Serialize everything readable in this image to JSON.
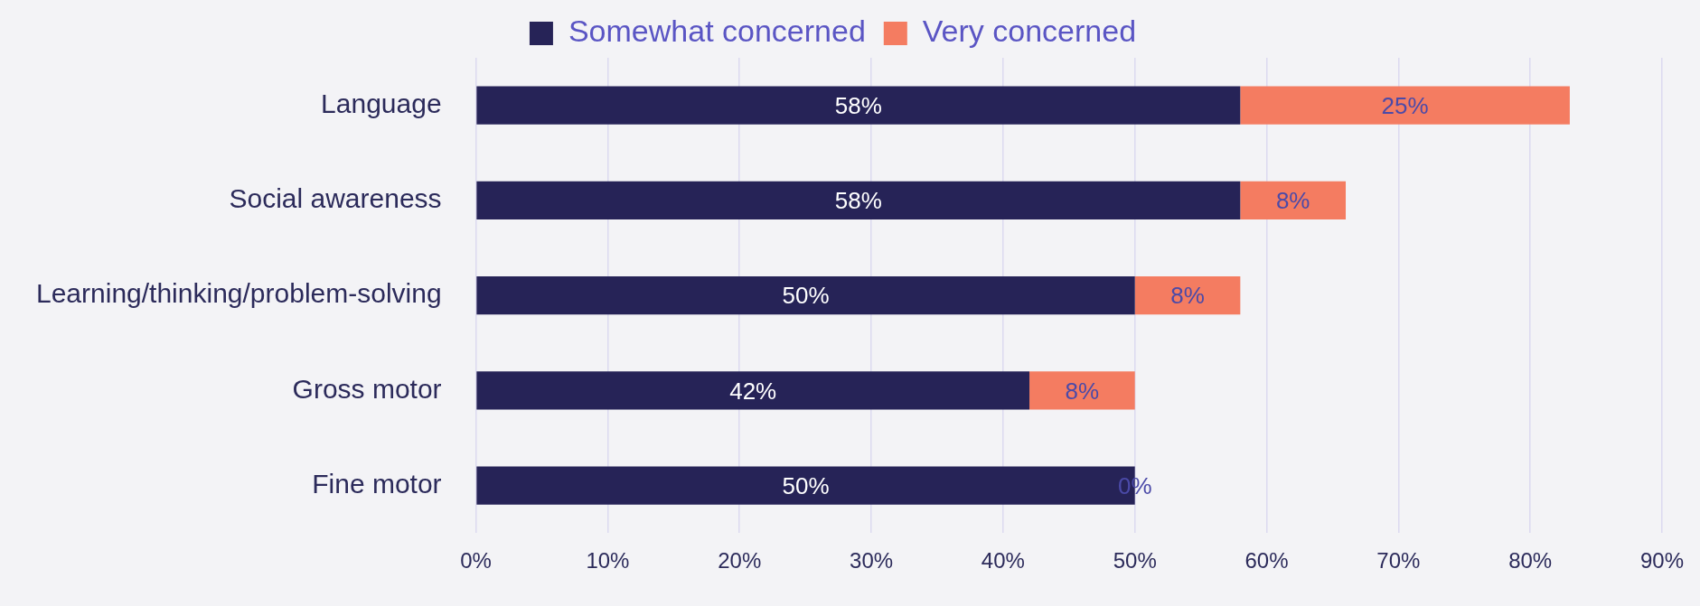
{
  "chart_data": {
    "type": "bar",
    "orientation": "horizontal",
    "stacked": true,
    "categories": [
      "Language",
      "Social awareness",
      "Learning/thinking/problem-solving",
      "Gross motor",
      "Fine motor"
    ],
    "series": [
      {
        "name": "Somewhat concerned",
        "color": "#262357",
        "values": [
          58,
          58,
          50,
          42,
          50
        ],
        "value_labels": [
          "58%",
          "58%",
          "50%",
          "42%",
          "50%"
        ]
      },
      {
        "name": "Very concerned",
        "color": "#f47c61",
        "values": [
          25,
          8,
          8,
          8,
          0
        ],
        "value_labels": [
          "25%",
          "8%",
          "8%",
          "8%",
          "0%"
        ]
      }
    ],
    "xlim": [
      0,
      90
    ],
    "xticks": [
      {
        "value": 0,
        "label": "0%"
      },
      {
        "value": 10,
        "label": "10%"
      },
      {
        "value": 20,
        "label": "20%"
      },
      {
        "value": 30,
        "label": "30%"
      },
      {
        "value": 40,
        "label": "40%"
      },
      {
        "value": 50,
        "label": "50%"
      },
      {
        "value": 60,
        "label": "60%"
      },
      {
        "value": 70,
        "label": "70%"
      },
      {
        "value": 80,
        "label": "80%"
      },
      {
        "value": 90,
        "label": "90%"
      }
    ],
    "grid": "x",
    "legend": "top"
  }
}
